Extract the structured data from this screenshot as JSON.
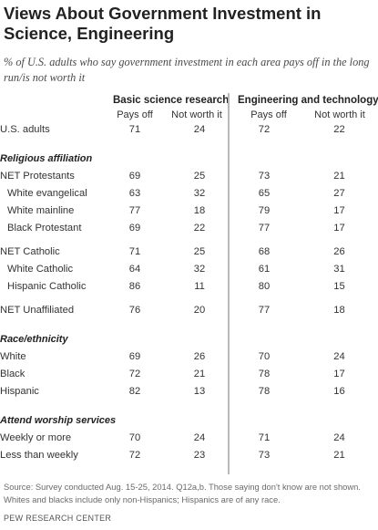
{
  "title": "Views About Government Investment in Science, Engineering",
  "subtitle": "% of U.S. adults who say government investment in each area pays off in the long run/is not worth it",
  "groups": [
    {
      "name": "Basic science research",
      "columns": [
        "Pays off",
        "Not worth it"
      ]
    },
    {
      "name": "Engineering and technology",
      "columns": [
        "Pays off",
        "Not worth it"
      ]
    }
  ],
  "chart_data": {
    "type": "table",
    "title": "Views About Government Investment in Science, Engineering",
    "column_groups": [
      "Basic science research",
      "Engineering and technology"
    ],
    "columns": [
      "Pays off",
      "Not worth it",
      "Pays off",
      "Not worth it"
    ],
    "rows": [
      {
        "type": "data",
        "label": "U.S. adults",
        "values": [
          71,
          24,
          72,
          22
        ]
      },
      {
        "type": "section",
        "label": "Religious affiliation"
      },
      {
        "type": "data",
        "label": "NET Protestants",
        "values": [
          69,
          25,
          73,
          21
        ]
      },
      {
        "type": "data",
        "label": "White evangelical",
        "indent": true,
        "values": [
          63,
          32,
          65,
          27
        ]
      },
      {
        "type": "data",
        "label": "White mainline",
        "indent": true,
        "values": [
          77,
          18,
          79,
          17
        ]
      },
      {
        "type": "data",
        "label": "Black Protestant",
        "indent": true,
        "values": [
          69,
          22,
          77,
          17
        ]
      },
      {
        "type": "data",
        "label": "NET Catholic",
        "values": [
          71,
          25,
          68,
          26
        ]
      },
      {
        "type": "data",
        "label": "White Catholic",
        "indent": true,
        "values": [
          64,
          32,
          61,
          31
        ]
      },
      {
        "type": "data",
        "label": "Hispanic Catholic",
        "indent": true,
        "values": [
          86,
          11,
          80,
          15
        ]
      },
      {
        "type": "data",
        "label": "NET Unaffiliated",
        "values": [
          76,
          20,
          77,
          18
        ]
      },
      {
        "type": "section",
        "label": "Race/ethnicity"
      },
      {
        "type": "data",
        "label": "White",
        "values": [
          69,
          26,
          70,
          24
        ]
      },
      {
        "type": "data",
        "label": "Black",
        "values": [
          72,
          21,
          78,
          17
        ]
      },
      {
        "type": "data",
        "label": "Hispanic",
        "values": [
          82,
          13,
          78,
          16
        ]
      },
      {
        "type": "section",
        "label": "Attend worship services"
      },
      {
        "type": "data",
        "label": "Weekly or more",
        "values": [
          70,
          24,
          71,
          24
        ]
      },
      {
        "type": "data",
        "label": "Less than weekly",
        "values": [
          72,
          23,
          73,
          21
        ]
      }
    ]
  },
  "source": "Source: Survey conducted Aug. 15-25, 2014. Q12a,b. Those saying don't know are not shown. Whites and blacks include only non-Hispanics; Hispanics are of any race.",
  "credit": "PEW RESEARCH CENTER"
}
